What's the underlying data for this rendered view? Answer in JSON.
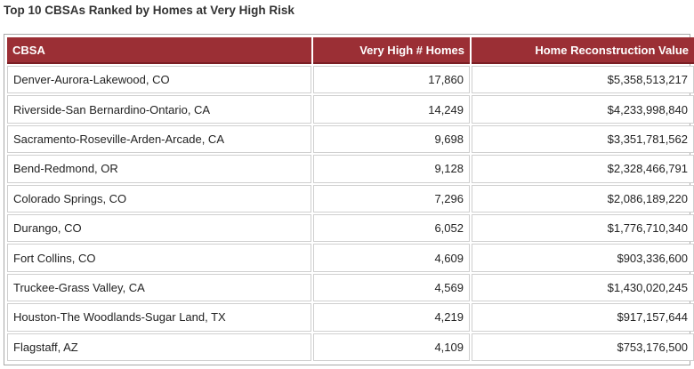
{
  "title": "Top 10 CBSAs Ranked by Homes at Very High Risk",
  "table": {
    "headers": [
      "CBSA",
      "Very High # Homes",
      "Home Reconstruction Value"
    ],
    "rows": [
      [
        "Denver-Aurora-Lakewood, CO",
        "17,860",
        "$5,358,513,217"
      ],
      [
        "Riverside-San Bernardino-Ontario, CA",
        "14,249",
        "$4,233,998,840"
      ],
      [
        "Sacramento-Roseville-Arden-Arcade, CA",
        "9,698",
        "$3,351,781,562"
      ],
      [
        "Bend-Redmond, OR",
        "9,128",
        "$2,328,466,791"
      ],
      [
        "Colorado Springs, CO",
        "7,296",
        "$2,086,189,220"
      ],
      [
        "Durango, CO",
        "6,052",
        "$1,776,710,340"
      ],
      [
        "Fort Collins, CO",
        "4,609",
        "$903,336,600"
      ],
      [
        "Truckee-Grass Valley, CA",
        "4,569",
        "$1,430,020,245"
      ],
      [
        "Houston-The Woodlands-Sugar Land, TX",
        "4,219",
        "$917,157,644"
      ],
      [
        "Flagstaff, AZ",
        "4,109",
        "$753,176,500"
      ]
    ]
  },
  "colors": {
    "header_background": "#9b2f35",
    "header_text": "#ffffff",
    "cell_border": "#cfcfcf"
  }
}
